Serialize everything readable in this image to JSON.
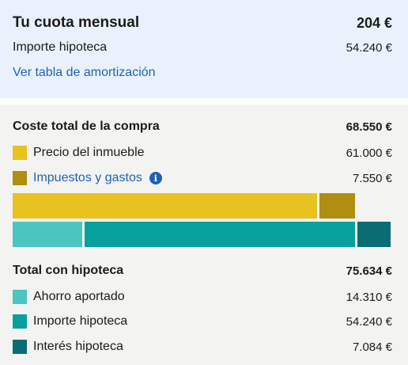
{
  "monthly": {
    "title": "Tu cuota mensual",
    "amount": "204 €",
    "mortgage_label": "Importe hipoteca",
    "mortgage_value": "54.240 €",
    "amortization_link": "Ver tabla de amortización"
  },
  "purchase": {
    "title": "Coste total de la compra",
    "total": "68.550 €",
    "items": [
      {
        "label": "Precio del inmueble",
        "value": "61.000 €",
        "color": "#e8c21f"
      },
      {
        "label": "Impuestos y gastos",
        "value": "7.550 €",
        "color": "#b08e10"
      }
    ],
    "info_icon": "info-icon"
  },
  "with_mortgage": {
    "title": "Total con hipoteca",
    "total": "75.634 €",
    "items": [
      {
        "label": "Ahorro aportado",
        "value": "14.310 €",
        "color": "#4cc4c0"
      },
      {
        "label": "Importe hipoteca",
        "value": "54.240 €",
        "color": "#08a09c"
      },
      {
        "label": "Interés hipoteca",
        "value": "7.084 €",
        "color": "#0a6d74"
      }
    ]
  },
  "chart_data": {
    "type": "bar",
    "series": [
      {
        "name": "Coste total de la compra",
        "values": [
          61000,
          7550
        ],
        "categories": [
          "Precio del inmueble",
          "Impuestos y gastos"
        ]
      },
      {
        "name": "Total con hipoteca",
        "values": [
          14310,
          54240,
          7084
        ],
        "categories": [
          "Ahorro aportado",
          "Importe hipoteca",
          "Interés hipoteca"
        ]
      }
    ],
    "scale_max": 75634
  }
}
